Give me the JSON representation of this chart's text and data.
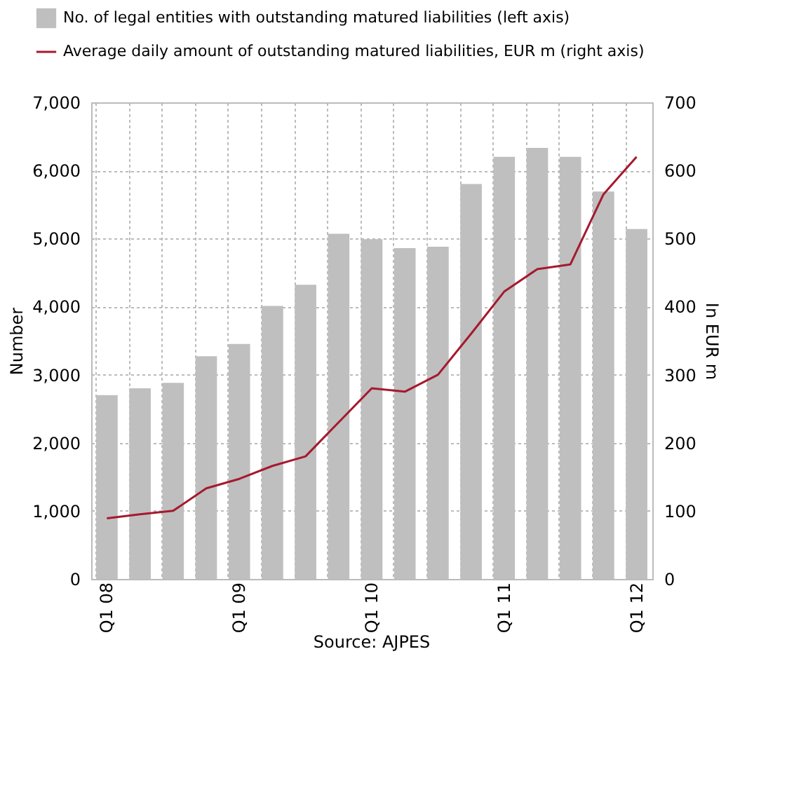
{
  "chart_data": {
    "type": "bar",
    "categories": [
      "Q1 08",
      null,
      null,
      null,
      "Q1 09",
      null,
      null,
      null,
      "Q1 10",
      null,
      null,
      null,
      "Q1 11",
      null,
      null,
      null,
      "Q1 12"
    ],
    "series": [
      {
        "name": "No. of legal entities with outstanding matured liabilities (left axis)",
        "type": "bar",
        "color": "#bfbfbf",
        "values": [
          2700,
          2800,
          2880,
          3270,
          3450,
          4010,
          4320,
          5070,
          4990,
          4860,
          4880,
          5800,
          6200,
          6330,
          6200,
          5690,
          5140
        ]
      },
      {
        "name": "Average daily amount of outstanding matured liabilities, EUR m (right axis)",
        "type": "line",
        "axis": "y2",
        "color": "#a6192e",
        "values": [
          89,
          95,
          100,
          133,
          147,
          166,
          180,
          230,
          280,
          275,
          300,
          360,
          422,
          455,
          462,
          565,
          620
        ]
      }
    ],
    "ylabel": "Number",
    "y2label": "In EUR m",
    "ylim": [
      0,
      7000
    ],
    "yticks": [
      0,
      {
        "value": 1000,
        "label": "1,000"
      },
      {
        "value": 2000,
        "label": "2,000"
      },
      {
        "value": 3000,
        "label": "3,000"
      },
      {
        "value": 4000,
        "label": "4,000"
      },
      {
        "value": 5000,
        "label": "5,000"
      },
      {
        "value": 6000,
        "label": "6,000"
      },
      {
        "value": 7000,
        "label": "7,000"
      }
    ],
    "y2lim": [
      0,
      700
    ],
    "y2ticks": [
      0,
      100,
      200,
      300,
      400,
      500,
      600,
      700
    ],
    "grid": true,
    "legend": "top",
    "marker": "none",
    "line_style": "solid",
    "annotations": [
      "Source: AJPES"
    ]
  }
}
